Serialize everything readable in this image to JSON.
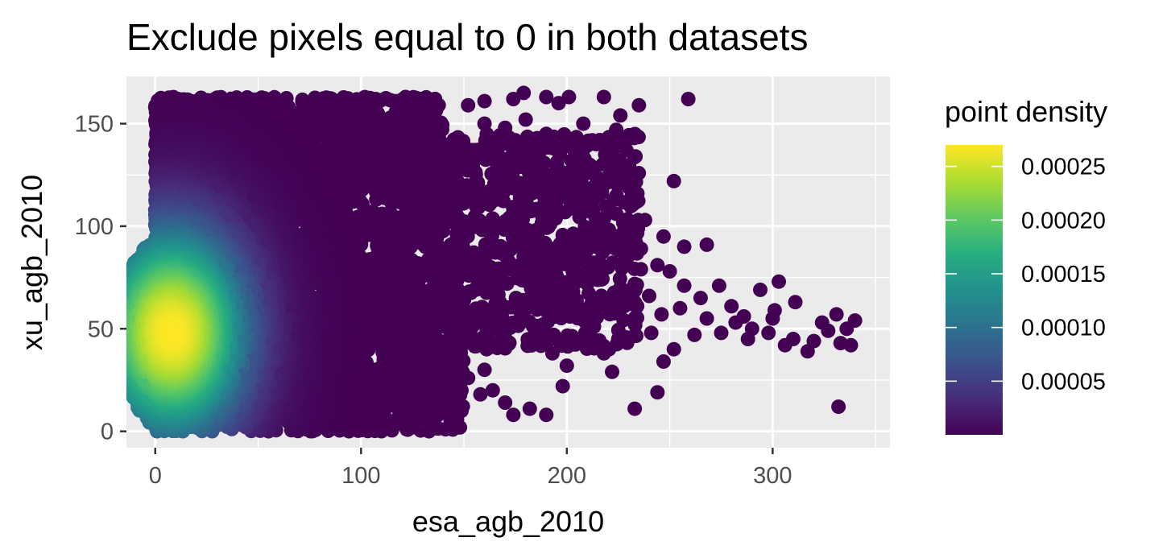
{
  "chart_data": {
    "type": "scatter",
    "title": "Exclude pixels equal to 0 in both datasets",
    "xlabel": "esa_agb_2010",
    "ylabel": "xu_agb_2010",
    "xlim": [
      -14,
      357
    ],
    "ylim": [
      -8,
      173
    ],
    "x_ticks": [
      0,
      100,
      200,
      300
    ],
    "y_ticks": [
      0,
      50,
      100,
      150
    ],
    "x_tick_labels": [
      "0",
      "100",
      "200",
      "300"
    ],
    "y_tick_labels": [
      "0",
      "50",
      "100",
      "150"
    ],
    "grid": true,
    "background": "#ebebeb",
    "color_by": "point density",
    "colormap": "viridis",
    "legend": {
      "title": "point density",
      "position": "right",
      "range": [
        0,
        0.00027
      ],
      "breaks": [
        5e-05,
        0.0001,
        0.00015,
        0.0002,
        0.00025
      ],
      "labels": [
        "0.00005",
        "0.00010",
        "0.00015",
        "0.00020",
        "0.00025"
      ]
    },
    "density_peak": {
      "x": 8,
      "y": 48
    },
    "dense_region": {
      "x_range": [
        0,
        150
      ],
      "y_range": [
        0,
        163
      ]
    },
    "outlier_points": [
      [
        259,
        162
      ],
      [
        235,
        159
      ],
      [
        218,
        163
      ],
      [
        201,
        163
      ],
      [
        190,
        163
      ],
      [
        179,
        165
      ],
      [
        174,
        162
      ],
      [
        160,
        161
      ],
      [
        152,
        159
      ],
      [
        196,
        160
      ],
      [
        226,
        154
      ],
      [
        224,
        147
      ],
      [
        229,
        137
      ],
      [
        216,
        142
      ],
      [
        252,
        122
      ],
      [
        234,
        112
      ],
      [
        238,
        103
      ],
      [
        230,
        100
      ],
      [
        224,
        106
      ],
      [
        214,
        104
      ],
      [
        230,
        119
      ],
      [
        221,
        128
      ],
      [
        211,
        130
      ],
      [
        207,
        111
      ],
      [
        202,
        118
      ],
      [
        194,
        125
      ],
      [
        186,
        118
      ],
      [
        177,
        121
      ],
      [
        168,
        124
      ],
      [
        165,
        139
      ],
      [
        183,
        137
      ],
      [
        190,
        145
      ],
      [
        200,
        141
      ],
      [
        208,
        150
      ],
      [
        180,
        152
      ],
      [
        170,
        148
      ],
      [
        160,
        150
      ],
      [
        155,
        132
      ],
      [
        162,
        114
      ],
      [
        172,
        104
      ],
      [
        185,
        98
      ],
      [
        194,
        88
      ],
      [
        204,
        84
      ],
      [
        214,
        90
      ],
      [
        225,
        93
      ],
      [
        236,
        89
      ],
      [
        247,
        95
      ],
      [
        257,
        90
      ],
      [
        268,
        91
      ],
      [
        274,
        71
      ],
      [
        280,
        61
      ],
      [
        286,
        56
      ],
      [
        294,
        69
      ],
      [
        301,
        59
      ],
      [
        303,
        73
      ],
      [
        311,
        63
      ],
      [
        300,
        55
      ],
      [
        290,
        50
      ],
      [
        298,
        48
      ],
      [
        306,
        42
      ],
      [
        317,
        39
      ],
      [
        324,
        53
      ],
      [
        331,
        57
      ],
      [
        336,
        50
      ],
      [
        340,
        54
      ],
      [
        333,
        43
      ],
      [
        338,
        42
      ],
      [
        327,
        49
      ],
      [
        320,
        44
      ],
      [
        310,
        45
      ],
      [
        288,
        45
      ],
      [
        282,
        53
      ],
      [
        275,
        48
      ],
      [
        268,
        55
      ],
      [
        262,
        47
      ],
      [
        255,
        60
      ],
      [
        246,
        57
      ],
      [
        240,
        66
      ],
      [
        232,
        62
      ],
      [
        226,
        70
      ],
      [
        218,
        64
      ],
      [
        210,
        72
      ],
      [
        203,
        68
      ],
      [
        195,
        76
      ],
      [
        187,
        70
      ],
      [
        179,
        78
      ],
      [
        171,
        72
      ],
      [
        163,
        80
      ],
      [
        257,
        71
      ],
      [
        265,
        65
      ],
      [
        250,
        78
      ],
      [
        244,
        81
      ],
      [
        236,
        79
      ],
      [
        228,
        83
      ],
      [
        220,
        80
      ],
      [
        212,
        78
      ],
      [
        252,
        40
      ],
      [
        247,
        34
      ],
      [
        241,
        48
      ],
      [
        233,
        53
      ],
      [
        225,
        45
      ],
      [
        217,
        41
      ],
      [
        209,
        48
      ],
      [
        201,
        43
      ],
      [
        193,
        38
      ],
      [
        185,
        48
      ],
      [
        177,
        53
      ],
      [
        169,
        44
      ],
      [
        161,
        40
      ],
      [
        153,
        48
      ],
      [
        145,
        53
      ],
      [
        137,
        45
      ],
      [
        244,
        19
      ],
      [
        233,
        11
      ],
      [
        222,
        29
      ],
      [
        218,
        38
      ],
      [
        200,
        32
      ],
      [
        198,
        22
      ],
      [
        190,
        8
      ],
      [
        182,
        11
      ],
      [
        174,
        8
      ],
      [
        170,
        14
      ],
      [
        164,
        20
      ],
      [
        158,
        18
      ],
      [
        146,
        7
      ],
      [
        141,
        1
      ],
      [
        136,
        20
      ],
      [
        132,
        34
      ],
      [
        124,
        28
      ],
      [
        118,
        12
      ],
      [
        112,
        3
      ],
      [
        106,
        9
      ],
      [
        99,
        4
      ],
      [
        94,
        1
      ],
      [
        88,
        15
      ],
      [
        82,
        24
      ],
      [
        74,
        19
      ],
      [
        68,
        11
      ],
      [
        332,
        12
      ],
      [
        160,
        30
      ],
      [
        152,
        26
      ],
      [
        145,
        33
      ],
      [
        138,
        38
      ],
      [
        128,
        42
      ],
      [
        120,
        36
      ],
      [
        112,
        47
      ],
      [
        104,
        50
      ],
      [
        205,
        57
      ],
      [
        212,
        59
      ],
      [
        189,
        62
      ],
      [
        176,
        60
      ],
      [
        168,
        56
      ],
      [
        158,
        60
      ],
      [
        150,
        64
      ],
      [
        141,
        60
      ]
    ]
  }
}
